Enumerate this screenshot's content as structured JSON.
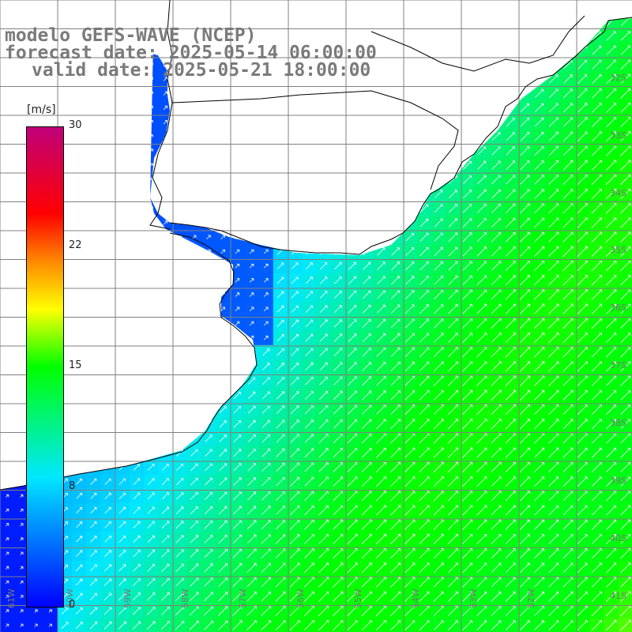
{
  "title": {
    "line1": "modelo GEFS-WAVE (NCEP)",
    "line2": "forecast date: 2025-05-14 06:00:00",
    "line3": "valid date: 2025-05-21 18:00:00"
  },
  "colorbar": {
    "unit": "[m/s]",
    "ticks": [
      "30",
      "22",
      "15",
      "8",
      "0"
    ]
  },
  "lat_labels": [
    "32S",
    "33S",
    "34S",
    "35S",
    "36S",
    "37S",
    "38S",
    "39S",
    "40S",
    "41S"
  ],
  "lon_labels": [
    "61W",
    "60W",
    "59W",
    "58W",
    "57W",
    "56W",
    "55W",
    "54W",
    "53W",
    "52W"
  ],
  "colors": {
    "land": "#ffffff",
    "grid": "#808080",
    "coast": "#000000",
    "arrows": "#ffffff",
    "title": "#7a7a7a"
  }
}
